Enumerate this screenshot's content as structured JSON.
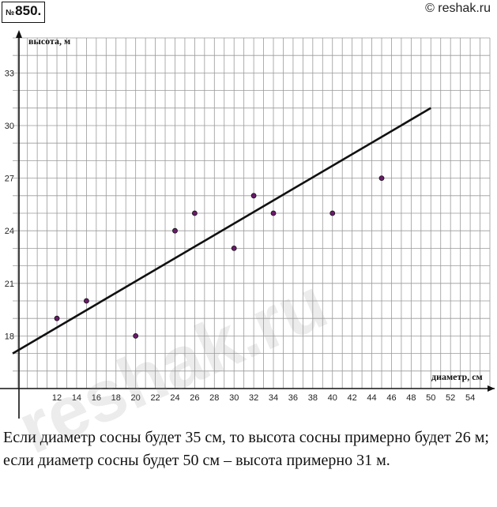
{
  "problem": {
    "number_prefix": "№",
    "number": "850."
  },
  "site": {
    "mark": "© reshak.ru"
  },
  "watermark": {
    "text": "reshak.ru"
  },
  "chart_data": {
    "type": "scatter",
    "xlabel": "диаметр, см",
    "ylabel": "высота, м",
    "xticks": [
      12,
      14,
      16,
      18,
      20,
      22,
      24,
      26,
      28,
      30,
      32,
      34,
      36,
      38,
      40,
      42,
      44,
      46,
      48,
      50,
      52,
      54
    ],
    "yticks": [
      18,
      21,
      24,
      27,
      30,
      33
    ],
    "xlim": [
      7.5,
      56
    ],
    "ylim": [
      15,
      35
    ],
    "grid": true,
    "points": [
      {
        "x": 12,
        "y": 19
      },
      {
        "x": 15,
        "y": 20
      },
      {
        "x": 20,
        "y": 18
      },
      {
        "x": 24,
        "y": 24
      },
      {
        "x": 26,
        "y": 25
      },
      {
        "x": 30,
        "y": 23
      },
      {
        "x": 32,
        "y": 26
      },
      {
        "x": 34,
        "y": 25
      },
      {
        "x": 40,
        "y": 25
      },
      {
        "x": 45,
        "y": 27
      }
    ],
    "trend_line": {
      "x": [
        7.5,
        50
      ],
      "y": [
        17,
        31
      ]
    },
    "colors": {
      "points": "#6a1a6a",
      "line": "#111111",
      "grid": "#9a9a9a",
      "axes": "#111111"
    }
  },
  "answer": {
    "line1": "Если диаметр сосны будет 35 см, то высота сосны примерно будет 26 м;",
    "line2": "если диаметр сосны будет 50 см – высота примерно 31 м."
  }
}
